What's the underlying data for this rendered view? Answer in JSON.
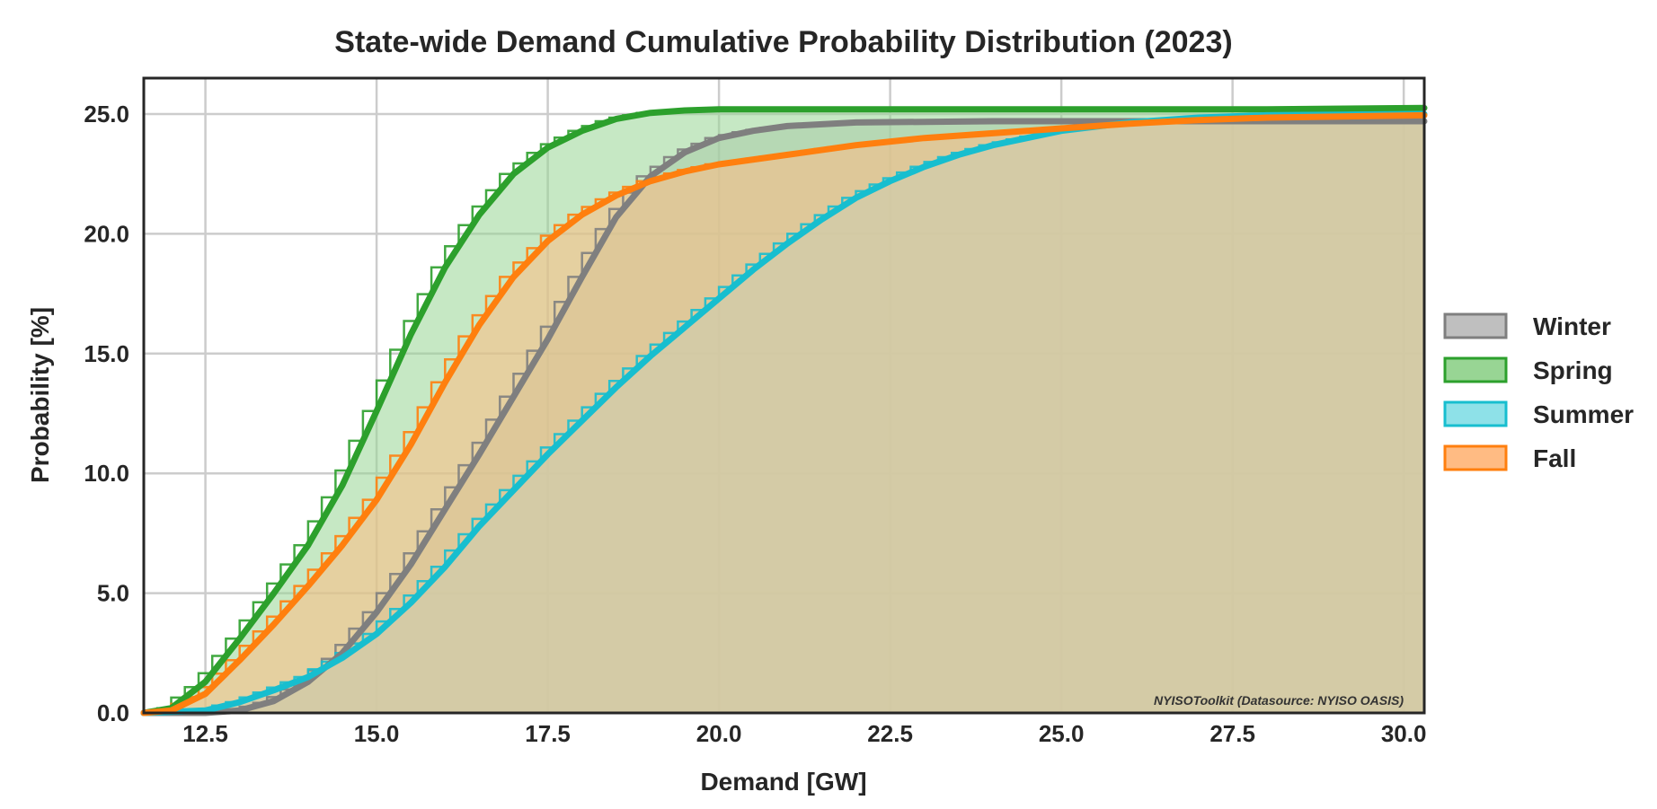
{
  "chart_data": {
    "type": "area",
    "title": "State-wide Demand Cumulative Probability Distribution (2023)",
    "xlabel": "Demand [GW]",
    "ylabel": "Probability [%]",
    "xlim": [
      11.6,
      30.3
    ],
    "ylim": [
      0,
      26.5
    ],
    "xticks": [
      "12.5",
      "15.0",
      "17.5",
      "20.0",
      "22.5",
      "25.0",
      "27.5",
      "30.0"
    ],
    "yticks": [
      "0.0",
      "5.0",
      "10.0",
      "15.0",
      "20.0",
      "25.0"
    ],
    "grid": true,
    "legend_position": "right",
    "watermark": "NYISOToolkit (Datasource: NYISO OASIS)",
    "series": [
      {
        "name": "Winter",
        "color": "#7f7f7f",
        "fill": "#bfbfbf",
        "points": [
          [
            11.6,
            0
          ],
          [
            12.5,
            0
          ],
          [
            13.0,
            0.1
          ],
          [
            13.5,
            0.5
          ],
          [
            14.0,
            1.3
          ],
          [
            14.5,
            2.5
          ],
          [
            15.0,
            4.2
          ],
          [
            15.5,
            6.2
          ],
          [
            16.0,
            8.5
          ],
          [
            16.5,
            10.8
          ],
          [
            17.0,
            13.2
          ],
          [
            17.5,
            15.6
          ],
          [
            18.0,
            18.2
          ],
          [
            18.5,
            20.7
          ],
          [
            19.0,
            22.4
          ],
          [
            19.5,
            23.4
          ],
          [
            20.0,
            24.0
          ],
          [
            20.5,
            24.3
          ],
          [
            21.0,
            24.5
          ],
          [
            22.0,
            24.65
          ],
          [
            24.0,
            24.7
          ],
          [
            26.0,
            24.7
          ],
          [
            28.0,
            24.7
          ],
          [
            30.3,
            24.7
          ]
        ]
      },
      {
        "name": "Spring",
        "color": "#2ca02c",
        "fill": "#98d594",
        "points": [
          [
            11.6,
            0
          ],
          [
            12.0,
            0.2
          ],
          [
            12.5,
            1.3
          ],
          [
            13.0,
            3.1
          ],
          [
            13.5,
            5.0
          ],
          [
            14.0,
            7.0
          ],
          [
            14.5,
            9.5
          ],
          [
            15.0,
            12.6
          ],
          [
            15.5,
            15.8
          ],
          [
            16.0,
            18.6
          ],
          [
            16.5,
            20.8
          ],
          [
            17.0,
            22.5
          ],
          [
            17.5,
            23.6
          ],
          [
            18.0,
            24.3
          ],
          [
            18.5,
            24.8
          ],
          [
            19.0,
            25.05
          ],
          [
            19.5,
            25.15
          ],
          [
            20.0,
            25.2
          ],
          [
            22.0,
            25.2
          ],
          [
            25.0,
            25.2
          ],
          [
            28.0,
            25.2
          ],
          [
            30.3,
            25.25
          ]
        ]
      },
      {
        "name": "Summer",
        "color": "#17becf",
        "fill": "#8ee1e8",
        "points": [
          [
            11.6,
            0
          ],
          [
            12.5,
            0.1
          ],
          [
            13.0,
            0.45
          ],
          [
            13.5,
            0.95
          ],
          [
            14.0,
            1.5
          ],
          [
            14.5,
            2.3
          ],
          [
            15.0,
            3.3
          ],
          [
            15.5,
            4.6
          ],
          [
            16.0,
            6.1
          ],
          [
            16.5,
            7.8
          ],
          [
            17.0,
            9.3
          ],
          [
            17.5,
            10.8
          ],
          [
            18.0,
            12.2
          ],
          [
            18.5,
            13.6
          ],
          [
            19.0,
            14.9
          ],
          [
            19.5,
            16.1
          ],
          [
            20.0,
            17.3
          ],
          [
            20.5,
            18.5
          ],
          [
            21.0,
            19.6
          ],
          [
            21.5,
            20.6
          ],
          [
            22.0,
            21.5
          ],
          [
            22.5,
            22.2
          ],
          [
            23.0,
            22.8
          ],
          [
            23.5,
            23.3
          ],
          [
            24.0,
            23.7
          ],
          [
            24.5,
            24.0
          ],
          [
            25.0,
            24.3
          ],
          [
            26.0,
            24.65
          ],
          [
            27.0,
            24.85
          ],
          [
            28.0,
            24.95
          ],
          [
            30.3,
            25.0
          ]
        ]
      },
      {
        "name": "Fall",
        "color": "#ff7f0e",
        "fill": "#ffbb83",
        "points": [
          [
            11.6,
            0
          ],
          [
            12.0,
            0.1
          ],
          [
            12.5,
            0.8
          ],
          [
            13.0,
            2.2
          ],
          [
            13.5,
            3.7
          ],
          [
            14.0,
            5.3
          ],
          [
            14.5,
            7.0
          ],
          [
            15.0,
            8.9
          ],
          [
            15.5,
            11.2
          ],
          [
            16.0,
            13.8
          ],
          [
            16.5,
            16.2
          ],
          [
            17.0,
            18.2
          ],
          [
            17.5,
            19.7
          ],
          [
            18.0,
            20.8
          ],
          [
            18.5,
            21.6
          ],
          [
            19.0,
            22.2
          ],
          [
            19.5,
            22.6
          ],
          [
            20.0,
            22.9
          ],
          [
            21.0,
            23.3
          ],
          [
            22.0,
            23.7
          ],
          [
            23.0,
            24.0
          ],
          [
            24.0,
            24.2
          ],
          [
            25.0,
            24.4
          ],
          [
            26.0,
            24.6
          ],
          [
            27.0,
            24.75
          ],
          [
            28.0,
            24.85
          ],
          [
            30.3,
            24.95
          ]
        ]
      }
    ]
  }
}
